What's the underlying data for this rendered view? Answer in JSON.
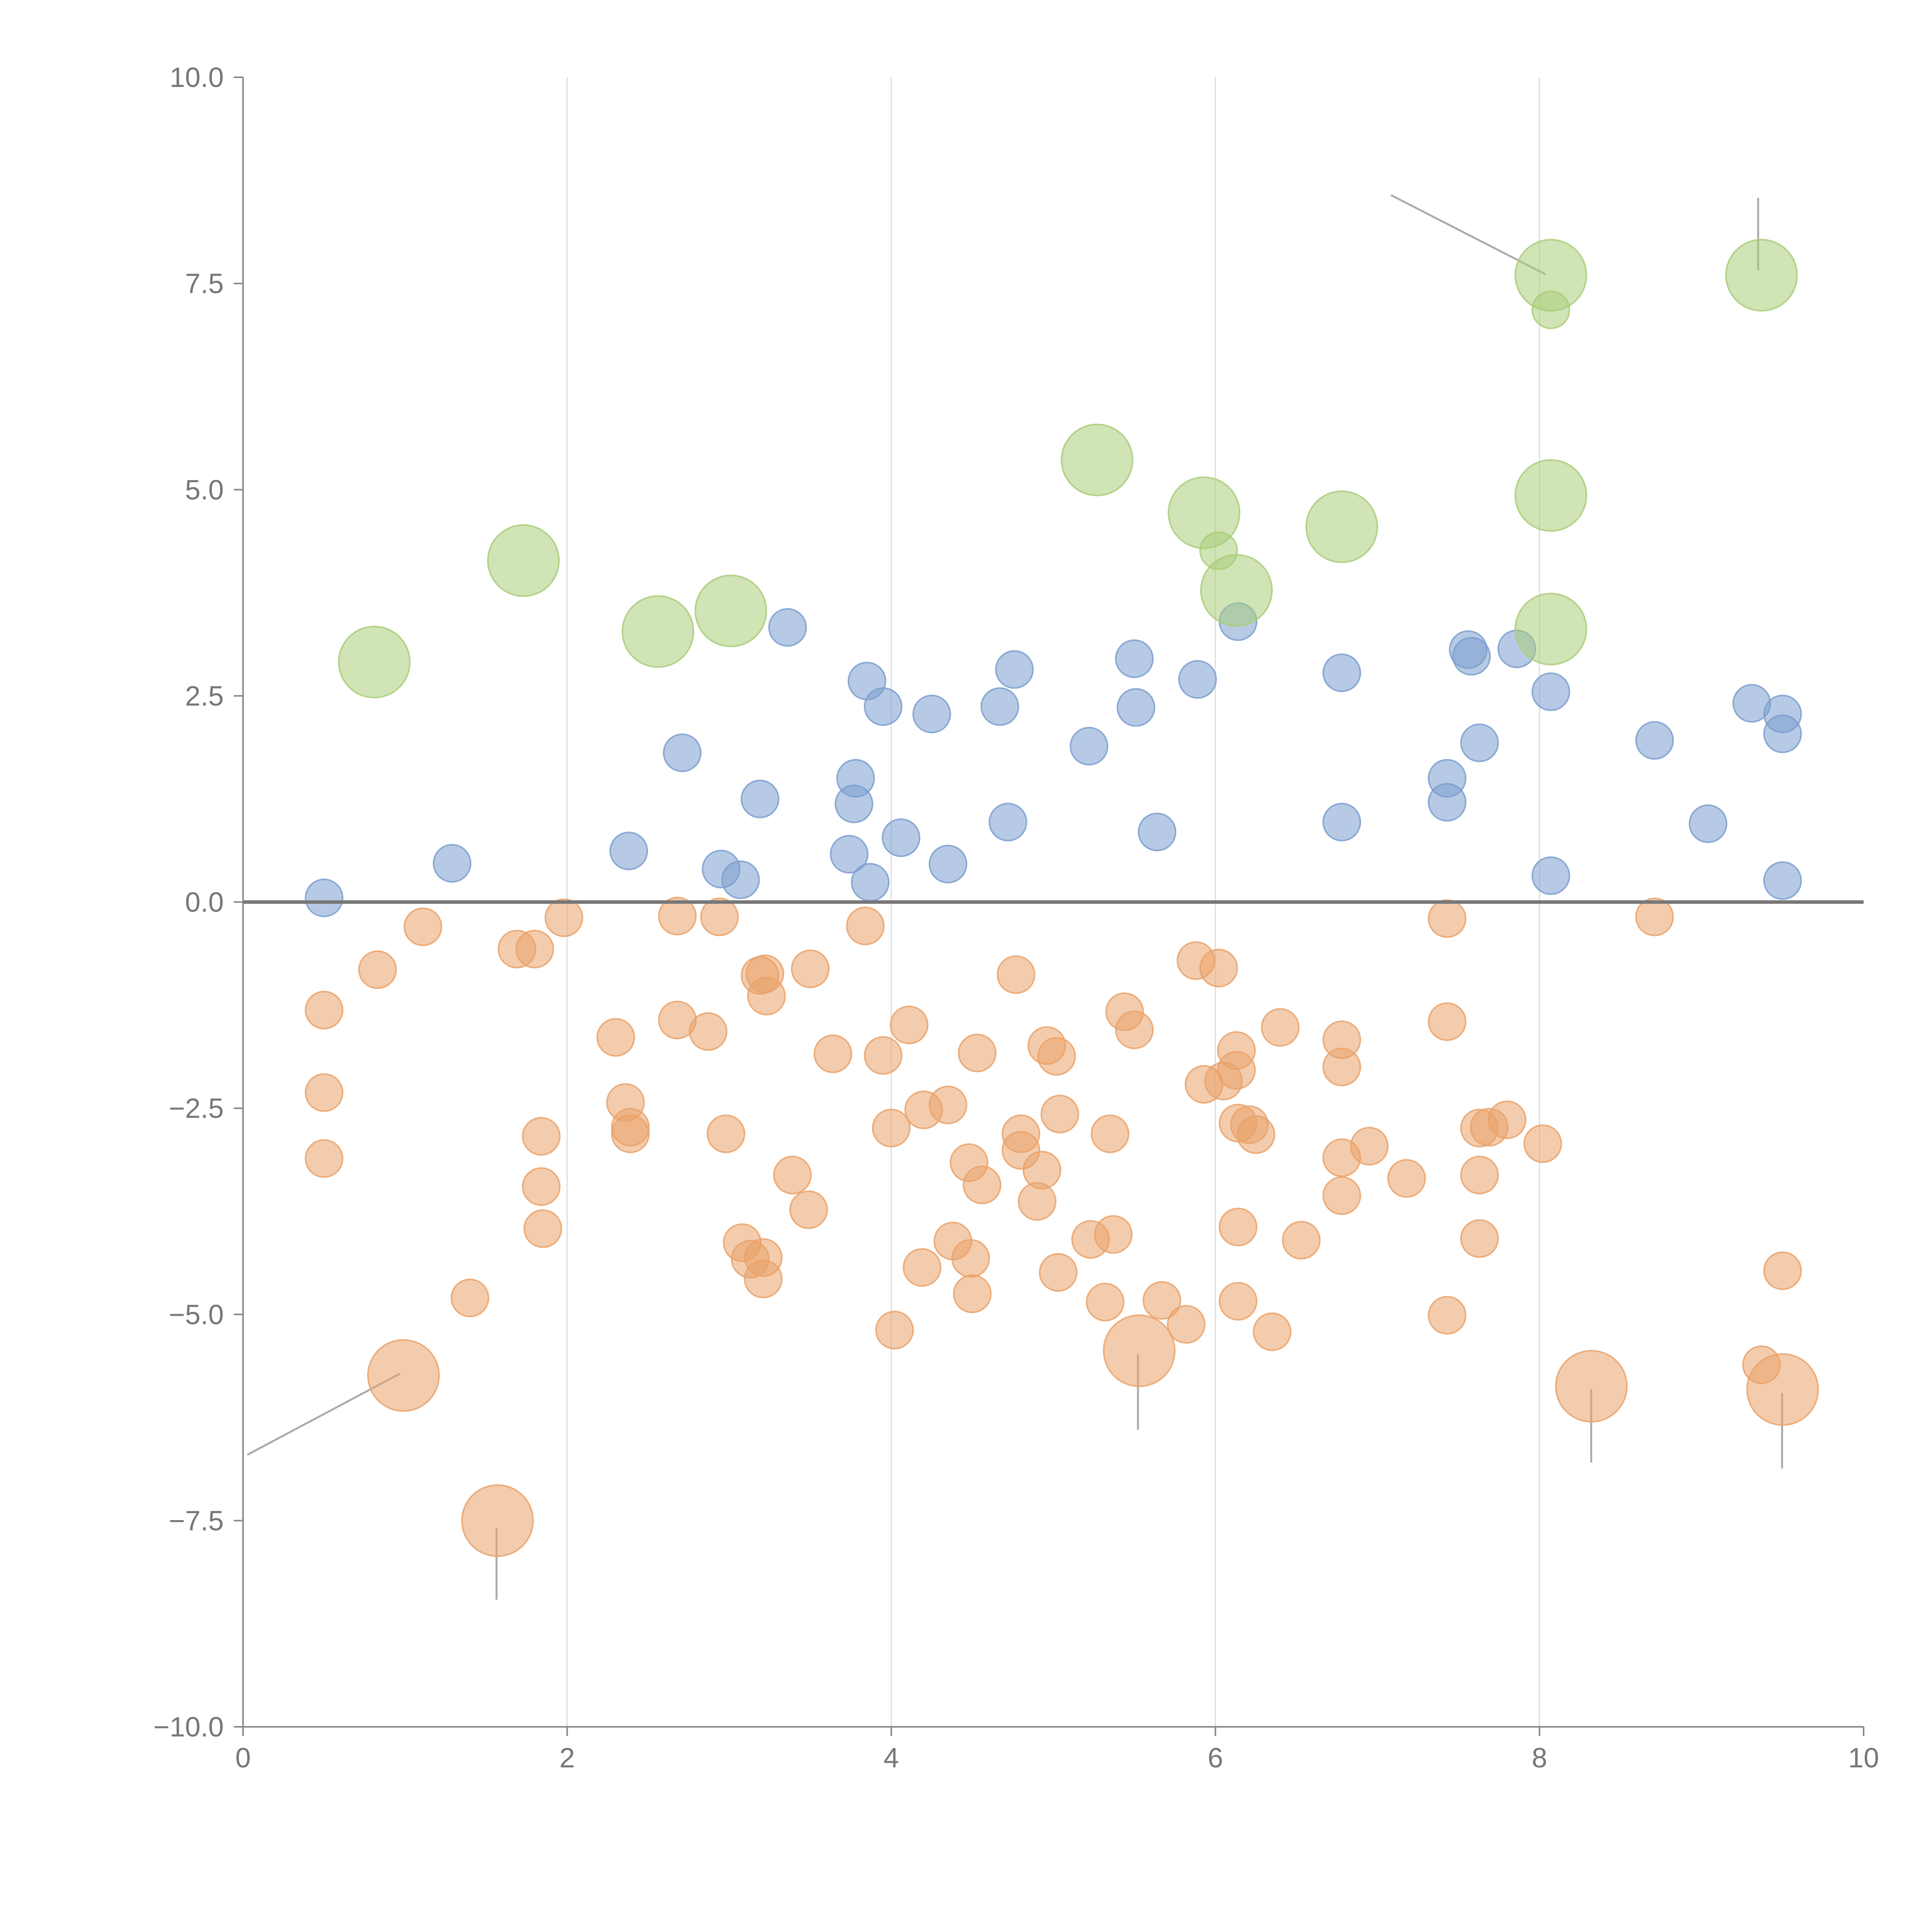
{
  "chart_data": {
    "type": "scatter",
    "title": "",
    "xlabel": "",
    "ylabel": "",
    "xlim": [
      0,
      10
    ],
    "ylim": [
      -10,
      10
    ],
    "x_ticks": [
      0,
      2,
      4,
      6,
      8,
      10
    ],
    "x_tick_labels": [
      "0",
      "2",
      "4",
      "6",
      "8",
      "10"
    ],
    "y_ticks": [
      -10,
      -7.5,
      -5,
      -2.5,
      0,
      2.5,
      5,
      7.5,
      10
    ],
    "y_tick_labels": [
      "−10.0",
      "−7.5",
      "−5.0",
      "−2.5",
      "0.0",
      "2.5",
      "5.0",
      "7.5",
      "10.0"
    ],
    "grid": "vertical",
    "zero_line": true,
    "legend": "none",
    "colors": {
      "positive": "#7b9fd0",
      "negative": "#eaa26a",
      "outlier": "#aacd7a",
      "axis": "#888888",
      "grid": "#dddddd"
    },
    "series": [
      {
        "name": "positive",
        "color": "#7b9fd0",
        "size": 1,
        "points": [
          [
            0.5,
            0.05
          ],
          [
            1.29,
            0.47
          ],
          [
            2.38,
            0.62
          ],
          [
            2.71,
            1.81
          ],
          [
            2.95,
            0.4
          ],
          [
            3.07,
            0.27
          ],
          [
            3.19,
            1.25
          ],
          [
            3.36,
            3.33
          ],
          [
            3.74,
            0.58
          ],
          [
            3.77,
            1.19
          ],
          [
            3.78,
            1.5
          ],
          [
            3.85,
            2.68
          ],
          [
            3.87,
            0.24
          ],
          [
            3.95,
            2.37
          ],
          [
            4.06,
            0.78
          ],
          [
            4.25,
            2.28
          ],
          [
            4.35,
            0.46
          ],
          [
            4.67,
            2.37
          ],
          [
            4.72,
            0.97
          ],
          [
            4.76,
            2.82
          ],
          [
            5.22,
            1.89
          ],
          [
            5.5,
            2.95
          ],
          [
            5.51,
            2.36
          ],
          [
            5.64,
            0.85
          ],
          [
            5.89,
            2.7
          ],
          [
            6.14,
            3.4
          ],
          [
            6.78,
            2.78
          ],
          [
            6.78,
            0.97
          ],
          [
            7.43,
            1.5
          ],
          [
            7.43,
            1.21
          ],
          [
            7.56,
            3.06
          ],
          [
            7.58,
            2.98
          ],
          [
            7.63,
            1.93
          ],
          [
            7.86,
            3.07
          ],
          [
            8.07,
            0.32
          ],
          [
            8.07,
            2.55
          ],
          [
            8.71,
            1.96
          ],
          [
            9.04,
            0.95
          ],
          [
            9.31,
            2.41
          ],
          [
            9.5,
            2.28
          ],
          [
            9.5,
            2.04
          ],
          [
            9.5,
            0.26
          ]
        ]
      },
      {
        "name": "negative",
        "color": "#eaa26a",
        "size": 1,
        "points": [
          [
            0.5,
            -1.31
          ],
          [
            0.5,
            -2.31
          ],
          [
            0.5,
            -3.11
          ],
          [
            0.83,
            -0.82
          ],
          [
            1.11,
            -0.3
          ],
          [
            1.4,
            -4.8
          ],
          [
            1.69,
            -0.57
          ],
          [
            1.8,
            -0.57
          ],
          [
            1.84,
            -2.84
          ],
          [
            1.84,
            -3.45
          ],
          [
            1.85,
            -3.96
          ],
          [
            1.98,
            -0.19
          ],
          [
            2.3,
            -1.64
          ],
          [
            2.36,
            -2.43
          ],
          [
            2.39,
            -2.73
          ],
          [
            2.39,
            -2.81
          ],
          [
            2.68,
            -0.17
          ],
          [
            2.68,
            -1.43
          ],
          [
            2.87,
            -1.57
          ],
          [
            2.94,
            -0.18
          ],
          [
            2.98,
            -2.81
          ],
          [
            3.08,
            -4.13
          ],
          [
            3.13,
            -4.33
          ],
          [
            3.19,
            -0.89
          ],
          [
            3.22,
            -0.87
          ],
          [
            3.21,
            -4.31
          ],
          [
            3.23,
            -1.14
          ],
          [
            3.21,
            -4.57
          ],
          [
            3.39,
            -3.31
          ],
          [
            3.49,
            -3.73
          ],
          [
            3.5,
            -0.81
          ],
          [
            3.64,
            -1.84
          ],
          [
            3.84,
            -0.29
          ],
          [
            3.95,
            -1.86
          ],
          [
            4.0,
            -2.74
          ],
          [
            4.02,
            -5.19
          ],
          [
            4.11,
            -1.49
          ],
          [
            4.19,
            -4.43
          ],
          [
            4.2,
            -2.52
          ],
          [
            4.35,
            -2.46
          ],
          [
            4.38,
            -4.11
          ],
          [
            4.48,
            -3.16
          ],
          [
            4.49,
            -4.32
          ],
          [
            4.5,
            -4.75
          ],
          [
            4.53,
            -1.83
          ],
          [
            4.56,
            -3.43
          ],
          [
            4.77,
            -0.88
          ],
          [
            4.8,
            -2.81
          ],
          [
            4.8,
            -3.01
          ],
          [
            4.9,
            -3.63
          ],
          [
            4.93,
            -3.25
          ],
          [
            4.96,
            -1.74
          ],
          [
            5.02,
            -1.87
          ],
          [
            5.03,
            -4.49
          ],
          [
            5.04,
            -2.57
          ],
          [
            5.23,
            -4.09
          ],
          [
            5.32,
            -4.85
          ],
          [
            5.35,
            -2.81
          ],
          [
            5.37,
            -4.03
          ],
          [
            5.44,
            -1.33
          ],
          [
            5.5,
            -1.55
          ],
          [
            5.67,
            -4.83
          ],
          [
            5.82,
            -5.12
          ],
          [
            5.88,
            -0.71
          ],
          [
            5.93,
            -2.21
          ],
          [
            6.02,
            -0.8
          ],
          [
            6.05,
            -2.17
          ],
          [
            6.13,
            -1.8
          ],
          [
            6.13,
            -2.04
          ],
          [
            6.14,
            -2.68
          ],
          [
            6.14,
            -3.94
          ],
          [
            6.14,
            -4.84
          ],
          [
            6.21,
            -2.7
          ],
          [
            6.25,
            -2.82
          ],
          [
            6.35,
            -5.21
          ],
          [
            6.4,
            -1.52
          ],
          [
            6.53,
            -4.1
          ],
          [
            6.78,
            -1.67
          ],
          [
            6.78,
            -2.0
          ],
          [
            6.78,
            -3.1
          ],
          [
            6.78,
            -3.56
          ],
          [
            6.95,
            -2.96
          ],
          [
            7.18,
            -3.35
          ],
          [
            7.43,
            -0.2
          ],
          [
            7.43,
            -1.45
          ],
          [
            7.43,
            -5.01
          ],
          [
            7.63,
            -2.74
          ],
          [
            7.63,
            -3.31
          ],
          [
            7.63,
            -4.08
          ],
          [
            7.69,
            -2.73
          ],
          [
            7.8,
            -2.64
          ],
          [
            8.02,
            -2.93
          ],
          [
            8.71,
            -0.18
          ],
          [
            9.37,
            -5.61
          ],
          [
            9.5,
            -4.47
          ]
        ]
      },
      {
        "name": "negative-outliers",
        "color": "#eaa26a",
        "size": 2,
        "points": [
          [
            0.99,
            -5.74
          ],
          [
            1.57,
            -7.5
          ],
          [
            5.53,
            -5.44
          ],
          [
            8.32,
            -5.87
          ],
          [
            9.5,
            -5.91
          ]
        ]
      },
      {
        "name": "outliers-high",
        "color": "#aacd7a",
        "size": 2,
        "points": [
          [
            0.81,
            2.91
          ],
          [
            1.73,
            4.14
          ],
          [
            2.56,
            3.28
          ],
          [
            3.01,
            3.53
          ],
          [
            5.27,
            5.36
          ],
          [
            5.93,
            4.72
          ],
          [
            6.13,
            3.78
          ],
          [
            6.78,
            4.55
          ],
          [
            8.07,
            7.6
          ],
          [
            8.07,
            4.93
          ],
          [
            8.07,
            3.31
          ],
          [
            9.37,
            7.6
          ]
        ]
      },
      {
        "name": "outliers-high-small",
        "color": "#aacd7a",
        "size": 1,
        "points": [
          [
            6.02,
            4.26
          ],
          [
            8.07,
            7.18
          ]
        ]
      }
    ]
  }
}
